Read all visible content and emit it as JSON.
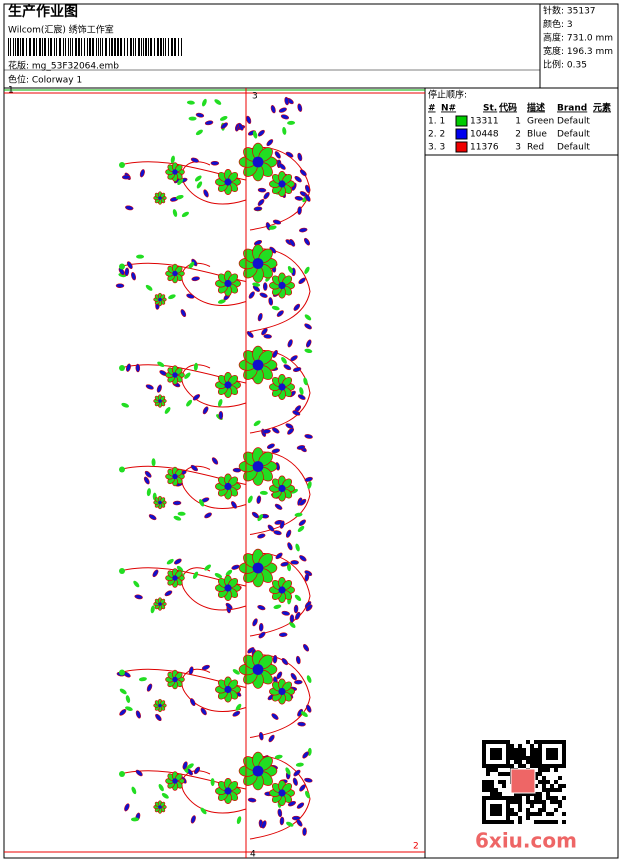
{
  "header": {
    "title": "生产作业图",
    "studio": "Wilcom(汇宸) 绣饰工作室",
    "design": "花版: mg_53F32064.emb",
    "colorway": "色位: Colorway 1"
  },
  "info": [
    "针数: 35137",
    "颜色: 3",
    "高度: 731.0 mm",
    "宽度: 196.3 mm",
    "比例: 0.35"
  ],
  "stops": {
    "title": "停止顺序:",
    "columns": [
      "#",
      "N#",
      "St.",
      "代码",
      "描述",
      "Brand",
      "元素"
    ],
    "rows": [
      {
        "index": "1. 1",
        "color": "#00cc00",
        "stitches": "13311",
        "code": "1",
        "desc": "Green",
        "brand": "Default"
      },
      {
        "index": "2. 2",
        "color": "#0000ee",
        "stitches": "10448",
        "code": "2",
        "desc": "Blue",
        "brand": "Default"
      },
      {
        "index": "3. 3",
        "color": "#ee0000",
        "stitches": "11376",
        "code": "3",
        "desc": "Red",
        "brand": "Default"
      }
    ]
  },
  "markers": [
    "1",
    "2",
    "3",
    "4"
  ],
  "watermark": "6xiu.com"
}
